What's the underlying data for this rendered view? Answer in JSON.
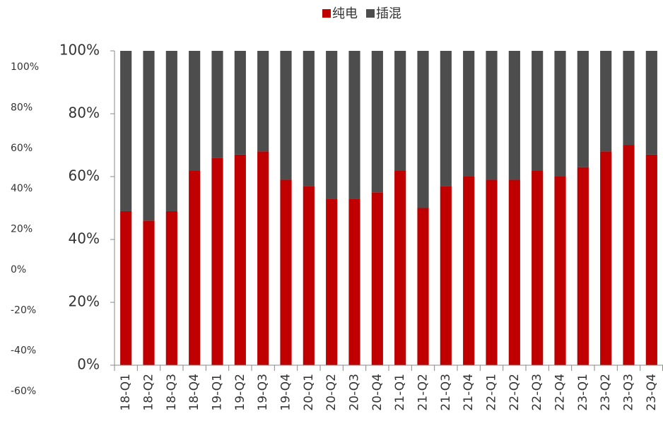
{
  "chart_data": {
    "type": "stacked_bar",
    "categories": [
      "18-Q1",
      "18-Q2",
      "18-Q3",
      "18-Q4",
      "19-Q1",
      "19-Q2",
      "19-Q3",
      "19-Q4",
      "20-Q1",
      "20-Q2",
      "20-Q3",
      "20-Q4",
      "21-Q1",
      "21-Q2",
      "21-Q3",
      "21-Q4",
      "22-Q1",
      "22-Q2",
      "22-Q3",
      "22-Q4",
      "23-Q1",
      "23-Q2",
      "23-Q3",
      "23-Q4"
    ],
    "series": [
      {
        "name": "纯电",
        "color": "#c00000",
        "values": [
          49,
          46,
          49,
          62,
          66,
          67,
          68,
          59,
          57,
          53,
          53,
          55,
          62,
          50,
          57,
          60,
          59,
          59,
          62,
          60,
          63,
          68,
          70,
          67
        ]
      },
      {
        "name": "插混",
        "color": "#4d4d4d",
        "values": [
          51,
          54,
          51,
          38,
          34,
          33,
          32,
          41,
          43,
          47,
          47,
          45,
          38,
          50,
          43,
          40,
          41,
          41,
          38,
          40,
          37,
          32,
          30,
          33
        ]
      }
    ],
    "ylim": [
      0,
      100
    ],
    "yticks": [
      {
        "value": 0,
        "label": "0%"
      },
      {
        "value": 20,
        "label": "20%"
      },
      {
        "value": 40,
        "label": "40%"
      },
      {
        "value": 60,
        "label": "60%"
      },
      {
        "value": 80,
        "label": "80%"
      },
      {
        "value": 100,
        "label": "100%"
      }
    ],
    "y2lim": [
      -60,
      100
    ],
    "y2ticks": [
      {
        "value": -60,
        "label": "-60%"
      },
      {
        "value": -40,
        "label": "-40%"
      },
      {
        "value": -20,
        "label": "-20%"
      },
      {
        "value": 0,
        "label": "0%"
      },
      {
        "value": 20,
        "label": "20%"
      },
      {
        "value": 40,
        "label": "40%"
      },
      {
        "value": 60,
        "label": "60%"
      },
      {
        "value": 80,
        "label": "80%"
      },
      {
        "value": 100,
        "label": "100%"
      }
    ],
    "legend": "top"
  }
}
